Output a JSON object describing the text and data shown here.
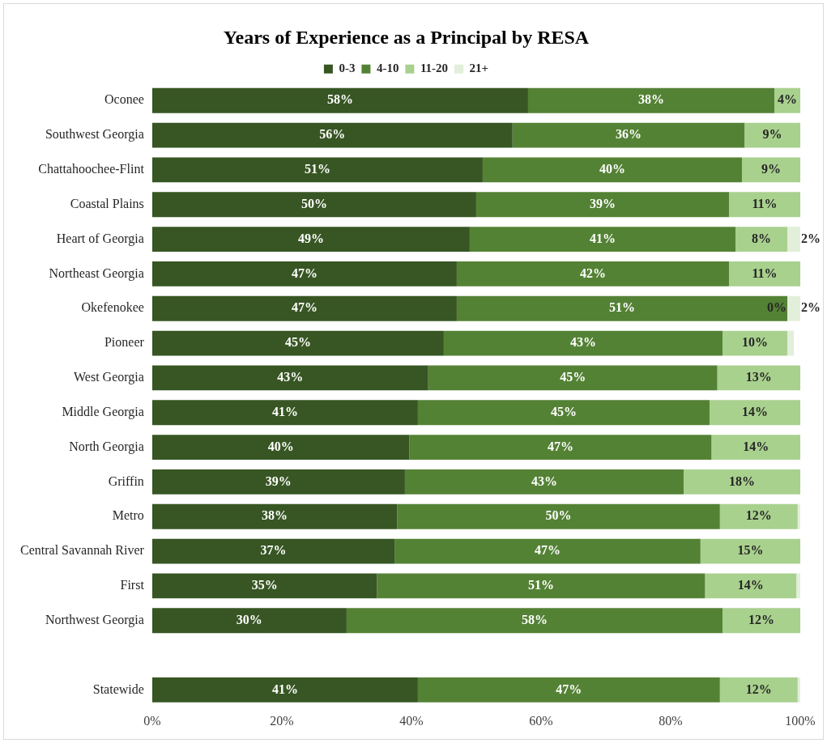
{
  "chart_data": {
    "type": "bar",
    "orientation": "horizontal",
    "stacked": true,
    "title": "Years of Experience as a Principal by RESA",
    "categories": [
      "Oconee",
      "Southwest Georgia",
      "Chattahoochee-Flint",
      "Coastal Plains",
      "Heart of Georgia",
      "Northeast Georgia",
      "Okefenokee",
      "Pioneer",
      "West Georgia",
      "Middle Georgia",
      "North Georgia",
      "Griffin",
      "Metro",
      "Central Savannah River",
      "First",
      "Northwest Georgia",
      null,
      "Statewide"
    ],
    "series": [
      {
        "name": "0-3",
        "color": "#375623",
        "values": [
          58,
          55.6,
          51,
          50,
          49,
          47,
          47,
          45,
          42.6,
          41,
          39.7,
          39,
          37.8,
          37.4,
          34.7,
          30,
          null,
          41
        ],
        "value_labels": [
          "58%",
          "56%",
          "51%",
          "50%",
          "49%",
          "47%",
          "47%",
          "45%",
          "43%",
          "41%",
          "40%",
          "39%",
          "38%",
          "37%",
          "35%",
          "30%",
          null,
          "41%"
        ]
      },
      {
        "name": "4-10",
        "color": "#548235",
        "values": [
          38,
          35.8,
          40,
          39,
          41,
          42,
          51,
          43,
          44.6,
          45,
          46.6,
          43,
          49.8,
          47.2,
          50.6,
          58,
          null,
          46.6
        ],
        "value_labels": [
          "38%",
          "36%",
          "40%",
          "39%",
          "41%",
          "42%",
          "51%",
          "43%",
          "45%",
          "45%",
          "47%",
          "43%",
          "50%",
          "47%",
          "51%",
          "58%",
          null,
          "47%"
        ]
      },
      {
        "name": "11-20",
        "color": "#a9d18e",
        "values": [
          4,
          8.6,
          9,
          11,
          8,
          11,
          0,
          10,
          12.8,
          14,
          13.7,
          18,
          12,
          15.4,
          14.1,
          12,
          null,
          12
        ],
        "value_labels": [
          "4%",
          "9%",
          "9%",
          "11%",
          "8%",
          "11%",
          "0%",
          "10%",
          "13%",
          "14%",
          "14%",
          "18%",
          "12%",
          "15%",
          "14%",
          "12%",
          null,
          "12%"
        ]
      },
      {
        "name": "21+",
        "color": "#e2efda",
        "values": [
          0,
          0,
          0,
          0,
          2,
          0,
          2,
          1,
          0,
          0,
          0,
          0,
          0.4,
          0,
          0.6,
          0,
          null,
          0.4
        ],
        "value_labels": [
          null,
          null,
          null,
          null,
          "2%",
          null,
          "2%",
          null,
          null,
          null,
          null,
          null,
          null,
          null,
          null,
          null,
          null,
          null
        ]
      }
    ],
    "xlim": [
      0,
      100
    ],
    "xticks": [
      {
        "value": 0,
        "label": "0%"
      },
      {
        "value": 20,
        "label": "20%"
      },
      {
        "value": 40,
        "label": "40%"
      },
      {
        "value": 60,
        "label": "60%"
      },
      {
        "value": 80,
        "label": "80%"
      },
      {
        "value": 100,
        "label": "100%"
      }
    ],
    "grid": false,
    "legend": "top"
  }
}
